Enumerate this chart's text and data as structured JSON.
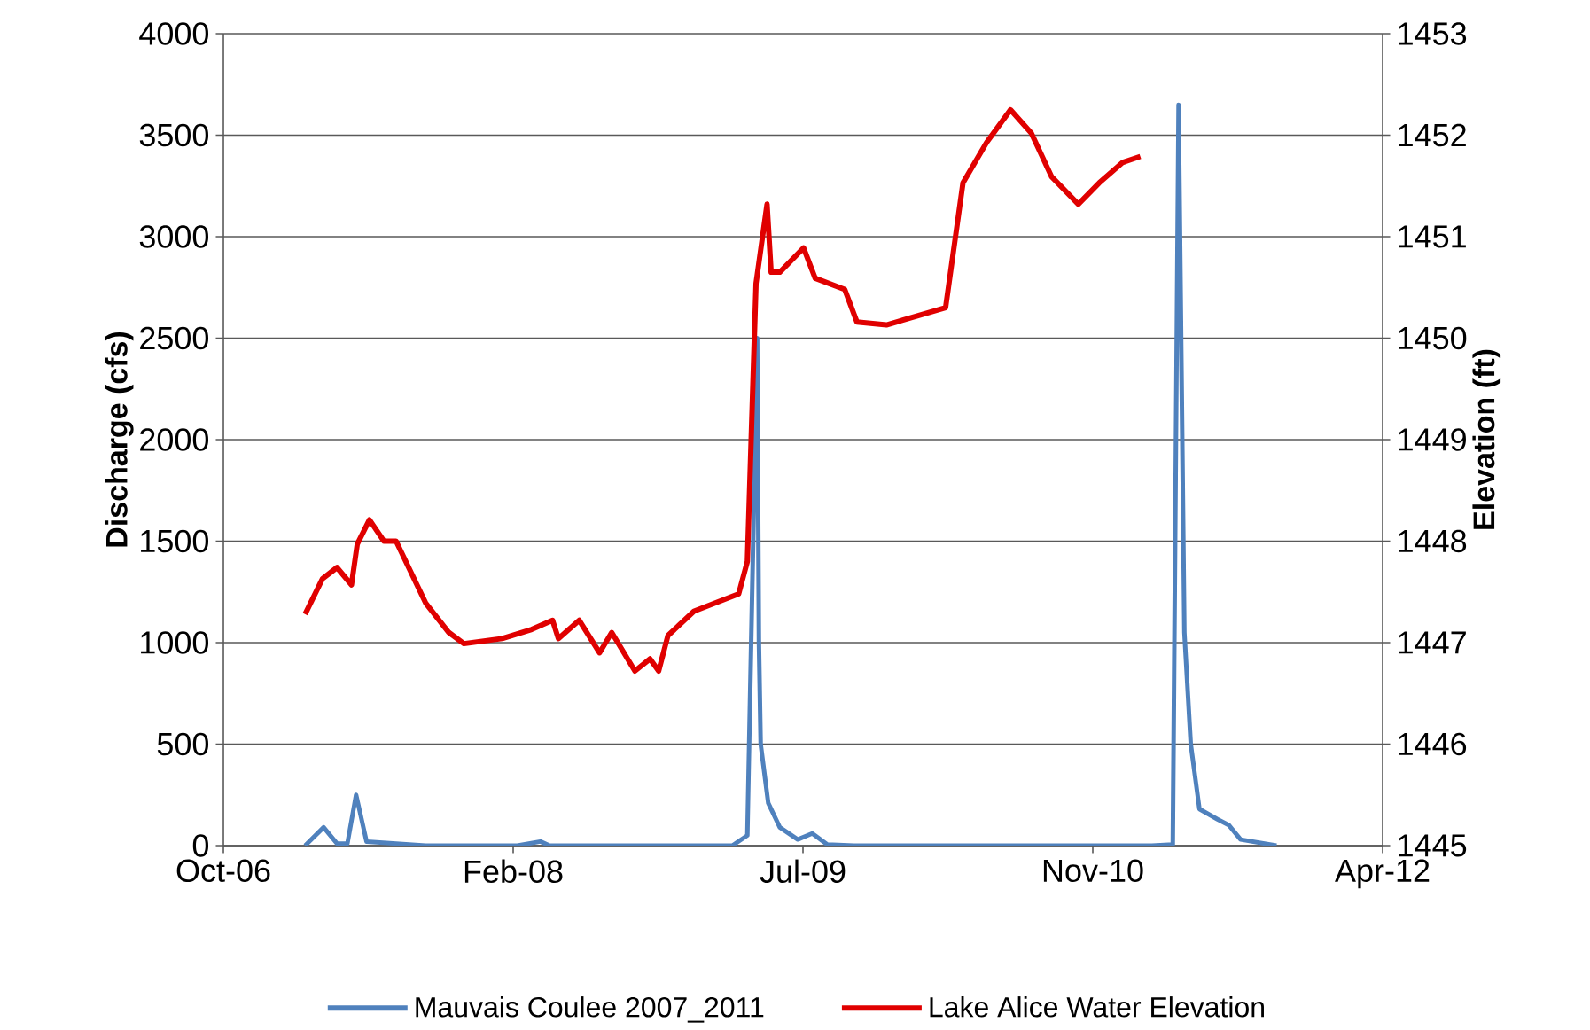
{
  "chart_data": {
    "type": "line",
    "ylabel": "Discharge (cfs)",
    "y2label": "Elevation (ft)",
    "xlim": [
      "2006-10-15",
      "2012-04-06"
    ],
    "xticks": [
      {
        "value": "2006-10-15",
        "label": "Oct-06"
      },
      {
        "value": "2008-02-27",
        "label": "Feb-08"
      },
      {
        "value": "2009-07-11",
        "label": "Jul-09"
      },
      {
        "value": "2010-11-23",
        "label": "Nov-10"
      },
      {
        "value": "2012-04-06",
        "label": "Apr-12"
      }
    ],
    "ylim": [
      0,
      4000
    ],
    "yticks": [
      0,
      500,
      1000,
      1500,
      2000,
      2500,
      3000,
      3500,
      4000
    ],
    "y2lim": [
      1445,
      1453
    ],
    "y2ticks": [
      1445,
      1446,
      1447,
      1448,
      1449,
      1450,
      1451,
      1452,
      1453
    ],
    "grid": "y",
    "legend": "bottom",
    "series": [
      {
        "name": "Mauvais Coulee 2007_2011",
        "color": "#4f81bd",
        "axis": "y",
        "x": [
          "2007-03-05",
          "2007-04-06",
          "2007-04-29",
          "2007-05-17",
          "2007-06-01",
          "2007-06-19",
          "2007-09-29",
          "2008-03-05",
          "2008-04-14",
          "2008-04-30",
          "2008-10-05",
          "2009-03-11",
          "2009-04-06",
          "2009-04-23",
          "2009-04-26",
          "2009-04-29",
          "2009-05-12",
          "2009-06-01",
          "2009-07-02",
          "2009-07-27",
          "2009-08-22",
          "2009-10-07",
          "2011-03-05",
          "2011-04-10",
          "2011-04-20",
          "2011-04-30",
          "2011-05-11",
          "2011-05-26",
          "2011-06-26",
          "2011-07-16",
          "2011-08-05",
          "2011-10-06"
        ],
        "values": [
          0,
          90,
          10,
          10,
          250,
          20,
          0,
          0,
          20,
          0,
          0,
          0,
          50,
          2500,
          1000,
          500,
          210,
          90,
          30,
          60,
          5,
          0,
          0,
          5,
          3650,
          1050,
          500,
          180,
          130,
          100,
          30,
          0
        ]
      },
      {
        "name": "Lake Alice Water Elevation",
        "color": "#e00000",
        "axis": "y2",
        "x": [
          "2007-03-05",
          "2007-04-04",
          "2007-04-29",
          "2007-05-24",
          "2007-06-03",
          "2007-06-24",
          "2007-07-19",
          "2007-08-09",
          "2007-09-29",
          "2007-11-08",
          "2007-12-04",
          "2008-02-08",
          "2008-03-30",
          "2008-05-05",
          "2008-05-15",
          "2008-06-20",
          "2008-07-25",
          "2008-08-15",
          "2008-09-24",
          "2008-10-20",
          "2008-11-04",
          "2008-11-20",
          "2009-01-04",
          "2009-03-22",
          "2009-04-06",
          "2009-04-21",
          "2009-05-10",
          "2009-05-17",
          "2009-06-01",
          "2009-07-12",
          "2009-08-01",
          "2009-09-21",
          "2009-10-12",
          "2009-12-02",
          "2010-03-14",
          "2010-04-13",
          "2010-05-24",
          "2010-07-04",
          "2010-08-09",
          "2010-09-13",
          "2010-10-29",
          "2010-12-04",
          "2011-01-13",
          "2011-02-13"
        ],
        "values": [
          1447.28,
          1447.63,
          1447.74,
          1447.57,
          1447.97,
          1448.21,
          1448.0,
          1448.0,
          1447.39,
          1447.1,
          1446.99,
          1447.04,
          1447.13,
          1447.22,
          1447.04,
          1447.22,
          1446.9,
          1447.1,
          1446.72,
          1446.84,
          1446.72,
          1447.07,
          1447.31,
          1447.48,
          1447.8,
          1450.54,
          1451.32,
          1450.65,
          1450.65,
          1450.89,
          1450.59,
          1450.48,
          1450.16,
          1450.13,
          1450.3,
          1451.53,
          1451.93,
          1452.25,
          1452.02,
          1451.59,
          1451.32,
          1451.53,
          1451.73,
          1451.79
        ]
      }
    ]
  }
}
